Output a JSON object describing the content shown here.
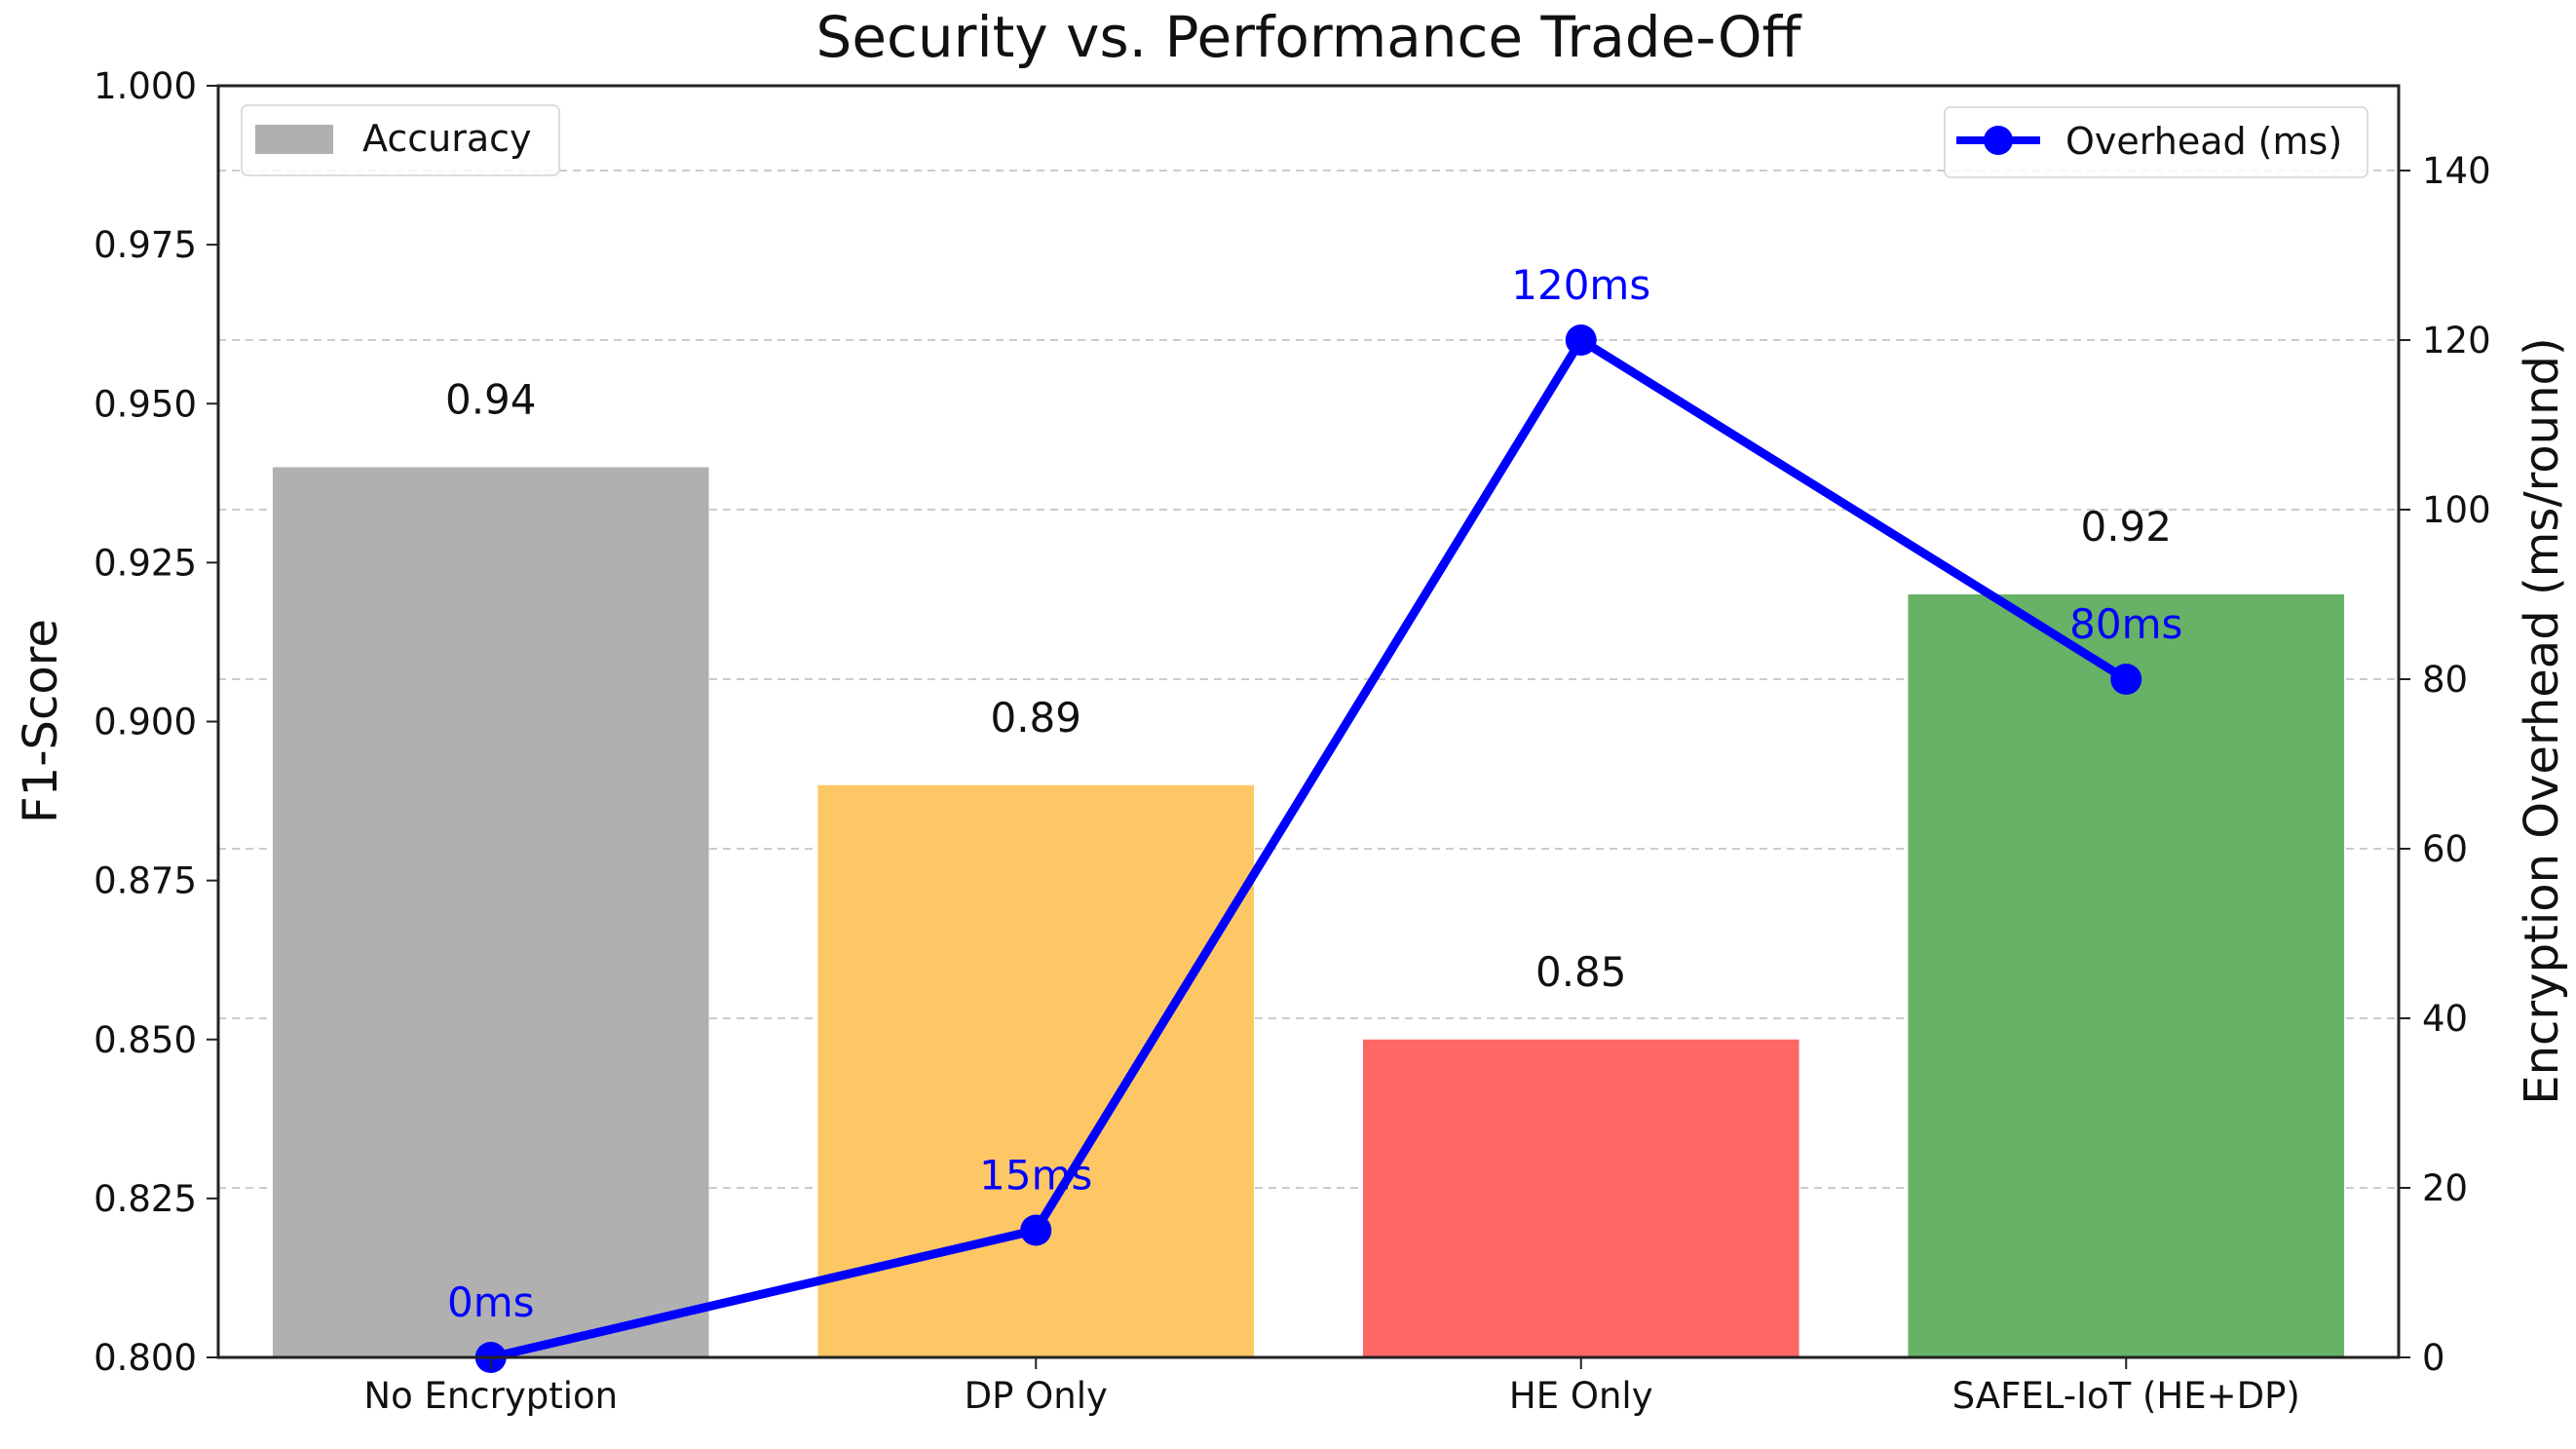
{
  "chart_data": {
    "type": "bar+line",
    "title": "Security vs. Performance Trade-Off",
    "categories": [
      "No Encryption",
      "DP Only",
      "HE Only",
      "SAFEL-IoT (HE+DP)"
    ],
    "bars": {
      "name": "Accuracy",
      "values": [
        0.94,
        0.89,
        0.85,
        0.92
      ],
      "labels": [
        "0.94",
        "0.89",
        "0.85",
        "0.92"
      ],
      "colors": [
        "#b0b0b0",
        "#fdc765",
        "#ff6666",
        "#67b266"
      ]
    },
    "line": {
      "name": "Overhead (ms)",
      "values": [
        0,
        15,
        120,
        80
      ],
      "labels": [
        "0ms",
        "15ms",
        "120ms",
        "80ms"
      ],
      "color": "#0000ff"
    },
    "ylabel": "F1-Score",
    "y2label": "Encryption Overhead (ms/round)",
    "ylim": [
      0.8,
      1.0
    ],
    "y2lim": [
      0,
      150
    ],
    "yticks": [
      "0.800",
      "0.825",
      "0.850",
      "0.875",
      "0.900",
      "0.925",
      "0.950",
      "0.975",
      "1.000"
    ],
    "y2ticks": [
      "0",
      "20",
      "40",
      "60",
      "80",
      "100",
      "120",
      "140"
    ],
    "grid": "dashed horizontal (secondary axis)",
    "legend_bars": "top-left",
    "legend_line": "top-right"
  }
}
